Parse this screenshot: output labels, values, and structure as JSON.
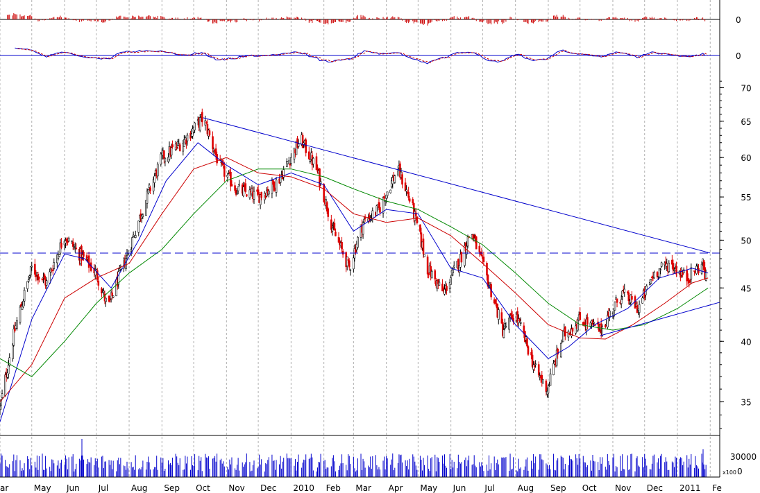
{
  "chart_data": {
    "type": "candlestick",
    "grid": true,
    "panels": {
      "macd_histogram": {
        "zero_label": "0"
      },
      "macd_lines": {
        "zero_label": "0"
      },
      "price": {
        "y_ticks": [
          "35",
          "40",
          "45",
          "50",
          "55",
          "60",
          "65",
          "70"
        ],
        "ylim": [
          32.5,
          72
        ],
        "scale": "log",
        "resistance_trendline": {
          "from": {
            "x": "2009-10-10",
            "y": 65.5
          },
          "to": {
            "x": "2011-02-01",
            "y": 48.6
          }
        },
        "support_trendline": {
          "from": {
            "x": "2010-10-20",
            "y": 40.5
          },
          "to": {
            "x": "2011-02-10",
            "y": 43.6
          }
        },
        "horizontal_level": 48.6
      },
      "volume": {
        "y_ticks": [
          "30000",
          "0"
        ],
        "unit_label": "x100"
      }
    },
    "x_tick_labels": [
      "ar",
      "May",
      "Jun",
      "Jul",
      "Aug",
      "Sep",
      "Oct",
      "Nov",
      "Dec",
      "2010",
      "Feb",
      "Mar",
      "Apr",
      "May",
      "Jun",
      "Jul",
      "Aug",
      "Sep",
      "Oct",
      "Nov",
      "Dec",
      "2011",
      "Fe"
    ],
    "price_path": [
      {
        "d": "2009-04-01",
        "v": 34.5
      },
      {
        "d": "2009-04-15",
        "v": 41.0
      },
      {
        "d": "2009-05-01",
        "v": 47.0
      },
      {
        "d": "2009-05-15",
        "v": 45.5
      },
      {
        "d": "2009-06-01",
        "v": 50.5
      },
      {
        "d": "2009-06-15",
        "v": 48.5
      },
      {
        "d": "2009-07-01",
        "v": 46.5
      },
      {
        "d": "2009-07-12",
        "v": 43.0
      },
      {
        "d": "2009-08-01",
        "v": 49.0
      },
      {
        "d": "2009-08-15",
        "v": 54.0
      },
      {
        "d": "2009-09-01",
        "v": 60.0
      },
      {
        "d": "2009-09-20",
        "v": 62.0
      },
      {
        "d": "2009-10-10",
        "v": 65.5
      },
      {
        "d": "2009-10-25",
        "v": 59.0
      },
      {
        "d": "2009-11-10",
        "v": 56.0
      },
      {
        "d": "2009-12-01",
        "v": 55.0
      },
      {
        "d": "2009-12-20",
        "v": 57.0
      },
      {
        "d": "2010-01-10",
        "v": 62.5
      },
      {
        "d": "2010-01-25",
        "v": 58.5
      },
      {
        "d": "2010-02-10",
        "v": 51.0
      },
      {
        "d": "2010-02-25",
        "v": 47.0
      },
      {
        "d": "2010-03-10",
        "v": 52.0
      },
      {
        "d": "2010-03-25",
        "v": 53.5
      },
      {
        "d": "2010-04-12",
        "v": 58.5
      },
      {
        "d": "2010-04-25",
        "v": 54.0
      },
      {
        "d": "2010-05-10",
        "v": 47.0
      },
      {
        "d": "2010-05-25",
        "v": 44.5
      },
      {
        "d": "2010-06-10",
        "v": 48.0
      },
      {
        "d": "2010-06-20",
        "v": 51.0
      },
      {
        "d": "2010-07-05",
        "v": 46.0
      },
      {
        "d": "2010-07-20",
        "v": 41.0
      },
      {
        "d": "2010-08-01",
        "v": 42.5
      },
      {
        "d": "2010-08-20",
        "v": 37.5
      },
      {
        "d": "2010-08-31",
        "v": 36.0
      },
      {
        "d": "2010-09-15",
        "v": 40.5
      },
      {
        "d": "2010-10-01",
        "v": 42.0
      },
      {
        "d": "2010-10-20",
        "v": 41.0
      },
      {
        "d": "2010-11-10",
        "v": 44.5
      },
      {
        "d": "2010-11-25",
        "v": 43.0
      },
      {
        "d": "2010-12-10",
        "v": 46.5
      },
      {
        "d": "2010-12-25",
        "v": 47.5
      },
      {
        "d": "2011-01-10",
        "v": 46.0
      },
      {
        "d": "2011-01-25",
        "v": 47.5
      },
      {
        "d": "2011-01-30",
        "v": 44.8
      }
    ],
    "moving_averages": [
      {
        "color": "#0000cc",
        "points": [
          {
            "d": "2009-04-01",
            "v": 33.5
          },
          {
            "d": "2009-05-01",
            "v": 42.0
          },
          {
            "d": "2009-06-01",
            "v": 48.5
          },
          {
            "d": "2009-06-20",
            "v": 48.0
          },
          {
            "d": "2009-07-15",
            "v": 45.0
          },
          {
            "d": "2009-08-10",
            "v": 50.0
          },
          {
            "d": "2009-09-05",
            "v": 57.0
          },
          {
            "d": "2009-10-05",
            "v": 62.0
          },
          {
            "d": "2009-11-01",
            "v": 59.0
          },
          {
            "d": "2009-12-01",
            "v": 56.5
          },
          {
            "d": "2010-01-01",
            "v": 58.0
          },
          {
            "d": "2010-02-01",
            "v": 56.5
          },
          {
            "d": "2010-03-01",
            "v": 51.0
          },
          {
            "d": "2010-04-01",
            "v": 53.5
          },
          {
            "d": "2010-05-01",
            "v": 53.0
          },
          {
            "d": "2010-06-01",
            "v": 47.0
          },
          {
            "d": "2010-07-01",
            "v": 46.0
          },
          {
            "d": "2010-08-01",
            "v": 41.5
          },
          {
            "d": "2010-09-01",
            "v": 38.5
          },
          {
            "d": "2010-09-20",
            "v": 39.5
          },
          {
            "d": "2010-10-15",
            "v": 41.5
          },
          {
            "d": "2010-11-15",
            "v": 43.0
          },
          {
            "d": "2010-12-15",
            "v": 46.0
          },
          {
            "d": "2011-01-15",
            "v": 47.0
          },
          {
            "d": "2011-01-30",
            "v": 46.5
          }
        ]
      },
      {
        "color": "#cc0000",
        "points": [
          {
            "d": "2009-04-01",
            "v": 35.0
          },
          {
            "d": "2009-05-01",
            "v": 38.0
          },
          {
            "d": "2009-06-01",
            "v": 44.0
          },
          {
            "d": "2009-07-01",
            "v": 46.0
          },
          {
            "d": "2009-08-01",
            "v": 47.5
          },
          {
            "d": "2009-09-01",
            "v": 53.0
          },
          {
            "d": "2009-10-01",
            "v": 58.5
          },
          {
            "d": "2009-11-01",
            "v": 60.0
          },
          {
            "d": "2009-12-01",
            "v": 58.0
          },
          {
            "d": "2010-01-01",
            "v": 57.5
          },
          {
            "d": "2010-02-01",
            "v": 56.0
          },
          {
            "d": "2010-03-01",
            "v": 53.0
          },
          {
            "d": "2010-04-01",
            "v": 52.0
          },
          {
            "d": "2010-05-01",
            "v": 52.5
          },
          {
            "d": "2010-06-01",
            "v": 50.5
          },
          {
            "d": "2010-07-01",
            "v": 47.5
          },
          {
            "d": "2010-08-01",
            "v": 44.5
          },
          {
            "d": "2010-09-01",
            "v": 41.5
          },
          {
            "d": "2010-10-01",
            "v": 40.3
          },
          {
            "d": "2010-10-25",
            "v": 40.2
          },
          {
            "d": "2010-11-20",
            "v": 41.5
          },
          {
            "d": "2010-12-20",
            "v": 43.5
          },
          {
            "d": "2011-01-15",
            "v": 45.5
          },
          {
            "d": "2011-01-30",
            "v": 46.0
          }
        ]
      },
      {
        "color": "#008800",
        "points": [
          {
            "d": "2009-04-01",
            "v": 38.5
          },
          {
            "d": "2009-05-01",
            "v": 37.0
          },
          {
            "d": "2009-06-01",
            "v": 40.0
          },
          {
            "d": "2009-07-01",
            "v": 43.5
          },
          {
            "d": "2009-08-01",
            "v": 46.5
          },
          {
            "d": "2009-09-01",
            "v": 49.0
          },
          {
            "d": "2009-10-01",
            "v": 53.0
          },
          {
            "d": "2009-11-01",
            "v": 57.0
          },
          {
            "d": "2009-12-01",
            "v": 58.5
          },
          {
            "d": "2010-01-01",
            "v": 58.5
          },
          {
            "d": "2010-02-01",
            "v": 57.5
          },
          {
            "d": "2010-03-01",
            "v": 56.0
          },
          {
            "d": "2010-04-01",
            "v": 54.5
          },
          {
            "d": "2010-05-01",
            "v": 53.5
          },
          {
            "d": "2010-06-01",
            "v": 51.5
          },
          {
            "d": "2010-07-01",
            "v": 49.5
          },
          {
            "d": "2010-08-01",
            "v": 46.5
          },
          {
            "d": "2010-09-01",
            "v": 43.5
          },
          {
            "d": "2010-10-01",
            "v": 41.5
          },
          {
            "d": "2010-11-01",
            "v": 41.0
          },
          {
            "d": "2010-12-01",
            "v": 41.5
          },
          {
            "d": "2011-01-01",
            "v": 43.0
          },
          {
            "d": "2011-01-30",
            "v": 45.0
          }
        ]
      }
    ],
    "colors": {
      "up": "#000000",
      "down": "#dd0000",
      "ma_fast": "#0000cc",
      "ma_mid": "#cc0000",
      "ma_slow": "#008800",
      "trendline": "#0000cc",
      "grid": "#b0b0b0",
      "histogram": "#cc0000",
      "volume": "#0000cc"
    }
  }
}
